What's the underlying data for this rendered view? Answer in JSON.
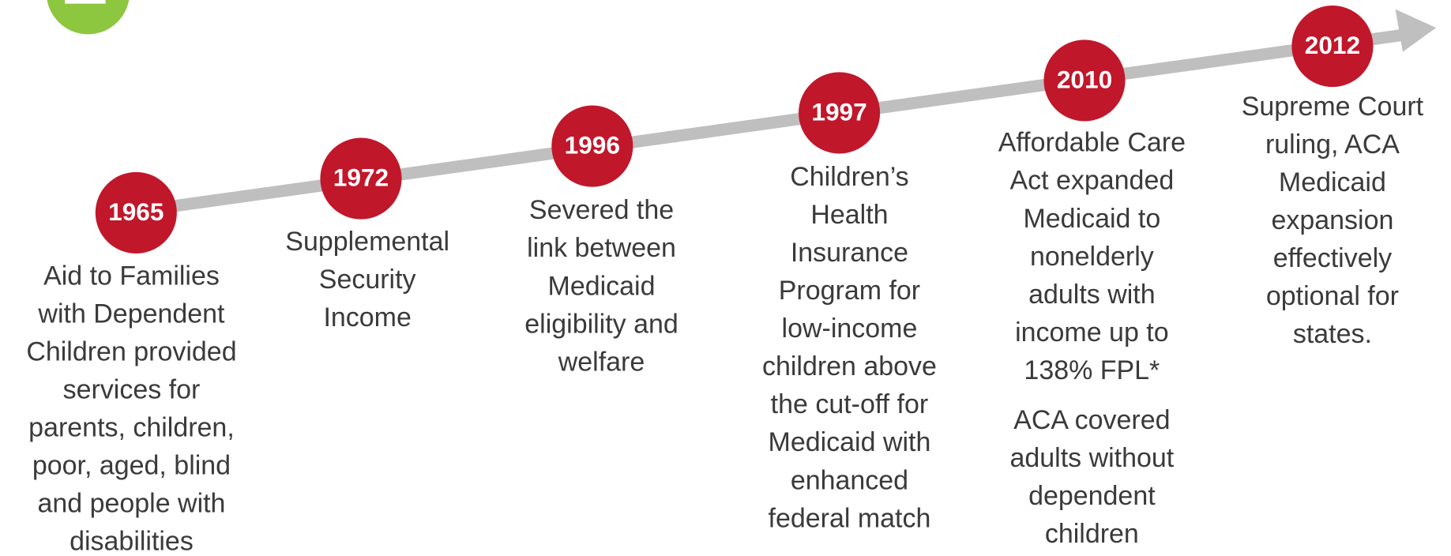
{
  "events": [
    {
      "year": "1965",
      "description": [
        "Aid to Families",
        "with Dependent",
        "Children provided",
        "services for",
        "parents, children,",
        "poor, aged, blind",
        "and people with",
        "disabilities"
      ]
    },
    {
      "year": "1972",
      "description": [
        "Supplemental",
        "Security",
        "Income"
      ]
    },
    {
      "year": "1996",
      "description": [
        "Severed the",
        "link between",
        "Medicaid",
        "eligibility and",
        "welfare"
      ]
    },
    {
      "year": "1997",
      "description": [
        "Children’s",
        "Health",
        "Insurance",
        "Program for",
        "low-income",
        "children above",
        "the cut-off for",
        "Medicaid with",
        "enhanced",
        "federal match"
      ]
    },
    {
      "year": "2010",
      "description": [
        "Affordable Care",
        "Act expanded",
        "Medicaid to",
        "nonelderly",
        "adults with",
        "income up to",
        "138% FPL*"
      ],
      "note": [
        "ACA covered",
        "adults without",
        "dependent",
        "children"
      ]
    },
    {
      "year": "2012",
      "description": [
        "Supreme Court",
        "ruling, ACA",
        "Medicaid",
        "expansion",
        "effectively",
        "optional for",
        "states."
      ]
    }
  ]
}
